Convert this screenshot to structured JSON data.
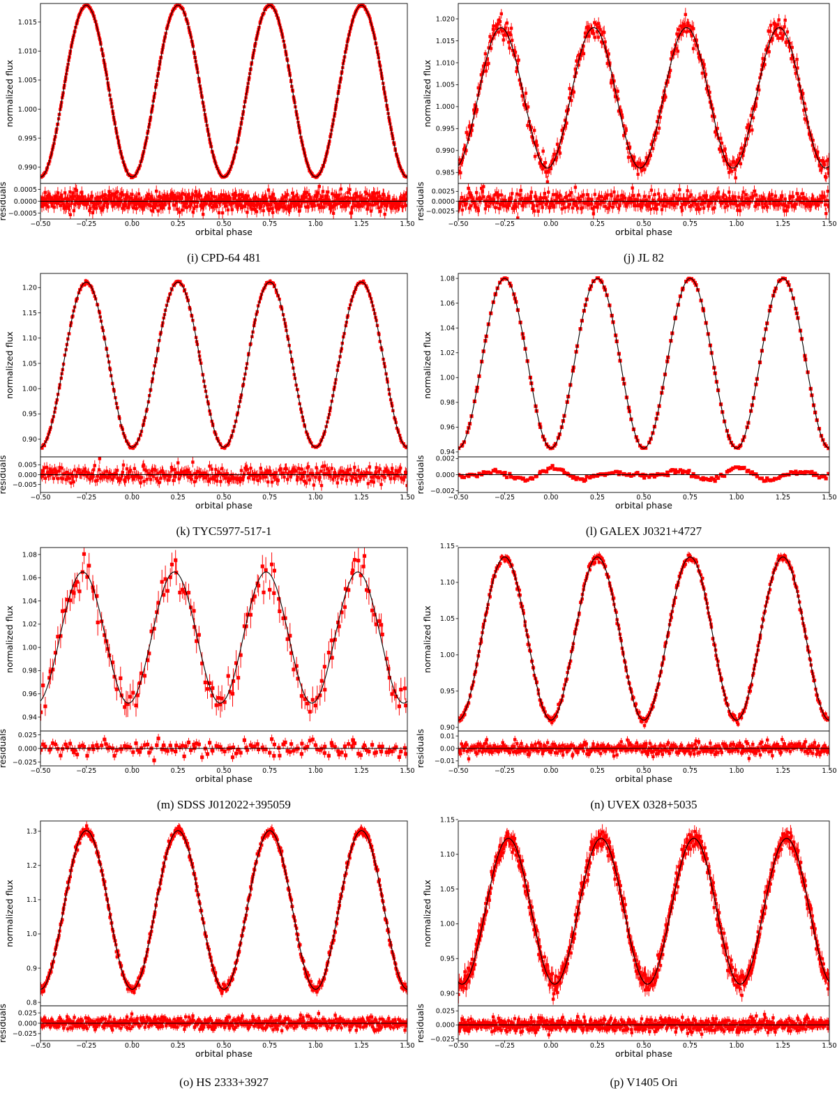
{
  "chart_data": [
    {
      "id": "i",
      "type": "line",
      "caption": "(i) CPD-64 481",
      "ylabel": "normalized flux",
      "rlabel": "residuals",
      "xlabel": "orbital phase",
      "xlim": [
        -0.5,
        1.5
      ],
      "xticks": [
        "−0.50",
        "−0.25",
        "0.00",
        "0.25",
        "0.50",
        "0.75",
        "1.00",
        "1.25",
        "1.50"
      ],
      "ylim": [
        0.9872,
        1.0182
      ],
      "yticks": [
        0.99,
        0.995,
        1.0,
        1.005,
        1.01,
        1.015
      ],
      "ytick_labels": [
        "0.990",
        "0.995",
        "1.000",
        "1.005",
        "1.010",
        "1.015"
      ],
      "rlim": [
        -0.00075,
        0.00075
      ],
      "rticks": [
        -0.0005,
        0.0,
        0.0005
      ],
      "rtick_labels": [
        "−0.0005",
        "0.0000",
        "0.0005"
      ],
      "model": {
        "mean": 1.0031,
        "amplitude": 0.0148,
        "min_phase": 0.0
      },
      "scatter": 8e-05,
      "err": 0.00012,
      "rscatter": 0.0002,
      "n_points": 700
    },
    {
      "id": "j",
      "type": "line",
      "caption": "(j) JL 82",
      "ylabel": "normalized flux",
      "rlabel": "residuals",
      "xlabel": "orbital phase",
      "xlim": [
        -0.5,
        1.5
      ],
      "xticks": [
        "−0.50",
        "−0.25",
        "0.00",
        "0.25",
        "0.50",
        "0.75",
        "1.00",
        "1.25",
        "1.50"
      ],
      "ylim": [
        0.9825,
        1.0235
      ],
      "yticks": [
        0.985,
        0.99,
        0.995,
        1.0,
        1.005,
        1.01,
        1.015,
        1.02
      ],
      "ytick_labels": [
        "0.985",
        "0.990",
        "0.995",
        "1.000",
        "1.005",
        "1.010",
        "1.015",
        "1.020"
      ],
      "rlim": [
        -0.0045,
        0.0045
      ],
      "rticks": [
        -0.0025,
        0.0,
        0.0025
      ],
      "rtick_labels": [
        "−0.0025",
        "0.0000",
        "0.0025"
      ],
      "model": {
        "mean": 1.002,
        "amplitude": 0.016,
        "min_phase": -0.02
      },
      "scatter": 0.0012,
      "err": 0.0012,
      "rscatter": 0.0012,
      "n_points": 500
    },
    {
      "id": "k",
      "type": "line",
      "caption": "(k) TYC5977-517-1",
      "ylabel": "normalized flux",
      "rlabel": "residuals",
      "xlabel": "orbital phase",
      "xlim": [
        -0.5,
        1.5
      ],
      "xticks": [
        "−0.50",
        "−0.25",
        "0.00",
        "0.25",
        "0.50",
        "0.75",
        "1.00",
        "1.25",
        "1.50"
      ],
      "ylim": [
        0.865,
        1.228
      ],
      "yticks": [
        0.9,
        0.95,
        1.0,
        1.05,
        1.1,
        1.15,
        1.2
      ],
      "ytick_labels": [
        "0.90",
        "0.95",
        "1.00",
        "1.05",
        "1.10",
        "1.15",
        "1.20"
      ],
      "rlim": [
        -0.009,
        0.009
      ],
      "rticks": [
        -0.005,
        0.0,
        0.005
      ],
      "rtick_labels": [
        "−0.005",
        "0.000",
        "0.005"
      ],
      "model": {
        "mean": 1.0475,
        "amplitude": 0.1635,
        "min_phase": 0.0
      },
      "scatter": 0.0015,
      "err": 0.003,
      "rscatter": 0.0022,
      "n_points": 400
    },
    {
      "id": "l",
      "type": "line",
      "caption": "(l) GALEX J0321+4727",
      "ylabel": "normalized flux",
      "rlabel": "residuals",
      "xlabel": "orbital phase",
      "xlim": [
        -0.5,
        1.5
      ],
      "xticks": [
        "−0.50",
        "−0.25",
        "0.00",
        "0.25",
        "0.50",
        "0.75",
        "1.00",
        "1.25",
        "1.50"
      ],
      "ylim": [
        0.936,
        1.084
      ],
      "yticks": [
        0.94,
        0.96,
        0.98,
        1.0,
        1.02,
        1.04,
        1.06,
        1.08
      ],
      "ytick_labels": [
        "0.94",
        "0.96",
        "0.98",
        "1.00",
        "1.02",
        "1.04",
        "1.06",
        "1.08"
      ],
      "rlim": [
        -0.0022,
        0.0022
      ],
      "rticks": [
        -0.002,
        0.0,
        0.002
      ],
      "rtick_labels": [
        "−0.002",
        "0.000",
        "0.002"
      ],
      "model": {
        "mean": 1.0115,
        "amplitude": 0.0685,
        "min_phase": 0.0
      },
      "scatter": 0.0002,
      "err": 0.0012,
      "rscatter": 0.00015,
      "n_points": 200,
      "residual_wave": {
        "amp": 0.0008,
        "freq": 3
      }
    },
    {
      "id": "m",
      "type": "line",
      "caption": "(m) SDSS J012022+395059",
      "ylabel": "normalized flux",
      "rlabel": "residuals",
      "xlabel": "orbital phase",
      "xlim": [
        -0.5,
        1.5
      ],
      "xticks": [
        "−0.50",
        "−0.25",
        "0.00",
        "0.25",
        "0.50",
        "0.75",
        "1.00",
        "1.25",
        "1.50"
      ],
      "ylim": [
        0.928,
        1.086
      ],
      "yticks": [
        0.94,
        0.96,
        0.98,
        1.0,
        1.02,
        1.04,
        1.06,
        1.08
      ],
      "ytick_labels": [
        "0.94",
        "0.96",
        "0.98",
        "1.00",
        "1.02",
        "1.04",
        "1.06",
        "1.08"
      ],
      "rlim": [
        -0.032,
        0.032
      ],
      "rticks": [
        -0.025,
        0.0,
        0.025
      ],
      "rtick_labels": [
        "−0.025",
        "0.000",
        "0.025"
      ],
      "model": {
        "mean": 1.0085,
        "amplitude": 0.0565,
        "min_phase": -0.02
      },
      "scatter": 0.007,
      "err": 0.009,
      "rscatter": 0.007,
      "n_points": 160
    },
    {
      "id": "n",
      "type": "line",
      "caption": "(n) UVEX 0328+5035",
      "ylabel": "normalized flux",
      "rlabel": "residuals",
      "xlabel": "orbital phase",
      "xlim": [
        -0.5,
        1.5
      ],
      "xticks": [
        "−0.50",
        "−0.25",
        "0.00",
        "0.25",
        "0.50",
        "0.75",
        "1.00",
        "1.25",
        "1.50"
      ],
      "ylim": [
        0.895,
        1.148
      ],
      "yticks": [
        0.9,
        0.95,
        1.0,
        1.05,
        1.1,
        1.15
      ],
      "ytick_labels": [
        "0.90",
        "0.95",
        "1.00",
        "1.05",
        "1.10",
        "1.15"
      ],
      "rlim": [
        -0.014,
        0.014
      ],
      "rticks": [
        -0.01,
        0.0,
        0.01
      ],
      "rtick_labels": [
        "−0.01",
        "0.00",
        "0.01"
      ],
      "model": {
        "mean": 1.0225,
        "amplitude": 0.1125,
        "min_phase": 0.0
      },
      "scatter": 0.0025,
      "err": 0.004,
      "rscatter": 0.0025,
      "n_points": 500
    },
    {
      "id": "o",
      "type": "line",
      "caption": "(o) HS 2333+3927",
      "ylabel": "normalized flux",
      "rlabel": "residuals",
      "xlabel": "orbital phase",
      "xlim": [
        -0.5,
        1.5
      ],
      "xticks": [
        "−0.50",
        "−0.25",
        "0.00",
        "0.25",
        "0.50",
        "0.75",
        "1.00",
        "1.25",
        "1.50"
      ],
      "ylim": [
        0.79,
        1.33
      ],
      "yticks": [
        0.8,
        0.9,
        1.0,
        1.1,
        1.2,
        1.3
      ],
      "ytick_labels": [
        "0.8",
        "0.9",
        "1.0",
        "1.1",
        "1.2",
        "1.3"
      ],
      "rlim": [
        -0.042,
        0.042
      ],
      "rticks": [
        -0.025,
        0.0,
        0.025
      ],
      "rtick_labels": [
        "−0.025",
        "0.000",
        "0.025"
      ],
      "model": {
        "mean": 1.07,
        "amplitude": 0.232,
        "min_phase": 0.0
      },
      "scatter": 0.006,
      "err": 0.01,
      "rscatter": 0.007,
      "n_points": 600
    },
    {
      "id": "p",
      "type": "line",
      "caption": "(p) V1405 Ori",
      "ylabel": "normalized flux",
      "rlabel": "residuals",
      "xlabel": "orbital phase",
      "xlim": [
        -0.5,
        1.5
      ],
      "xticks": [
        "−0.50",
        "−0.25",
        "0.00",
        "0.25",
        "0.50",
        "0.75",
        "1.00",
        "1.25",
        "1.50"
      ],
      "ylim": [
        0.882,
        1.148
      ],
      "yticks": [
        0.9,
        0.95,
        1.0,
        1.05,
        1.1,
        1.15
      ],
      "ytick_labels": [
        "0.90",
        "0.95",
        "1.00",
        "1.05",
        "1.10",
        "1.15"
      ],
      "rlim": [
        -0.028,
        0.034
      ],
      "rticks": [
        -0.025,
        0.0,
        0.025
      ],
      "rtick_labels": [
        "−0.025",
        "0.000",
        "0.025"
      ],
      "model": {
        "mean": 1.018,
        "amplitude": 0.105,
        "min_phase": 0.02
      },
      "scatter": 0.007,
      "err": 0.01,
      "rscatter": 0.006,
      "n_points": 700
    }
  ]
}
